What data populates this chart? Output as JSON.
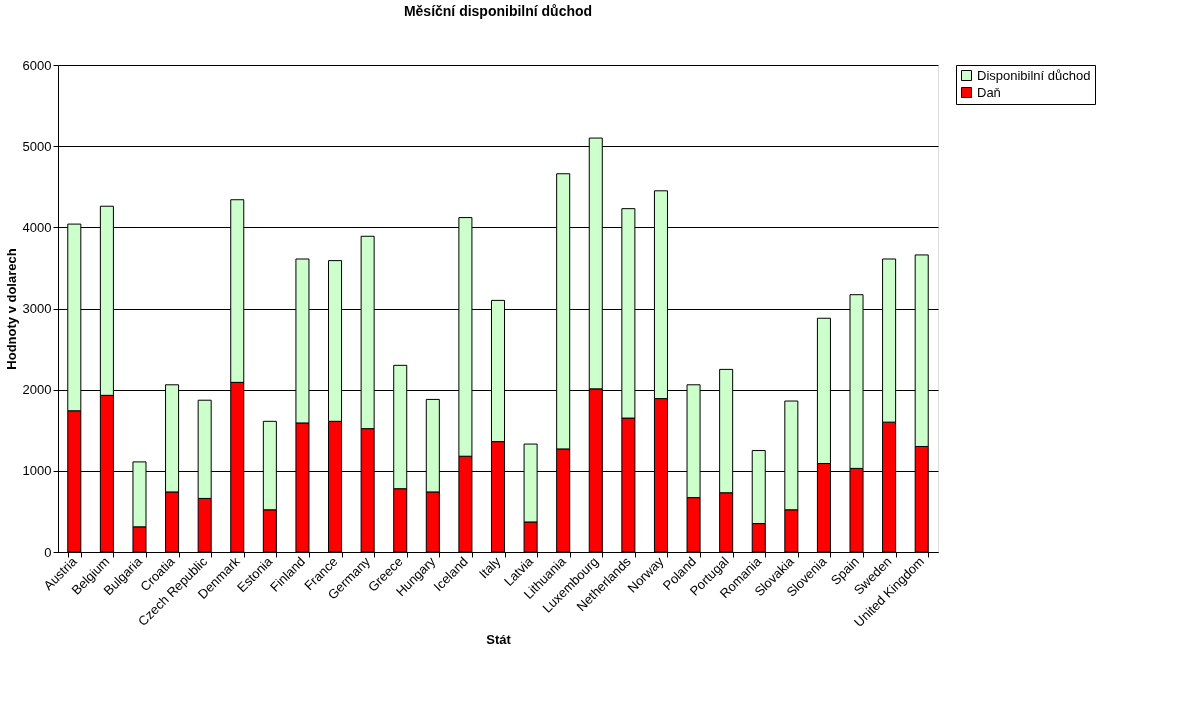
{
  "chart_data": {
    "type": "bar",
    "title": "Měsíční disponibilní důchod",
    "xlabel": "Stát",
    "ylabel": "Hodnoty v dolarech",
    "categories": [
      "Austria",
      "Belgium",
      "Bulgaria",
      "Croatia",
      "Czech Republic",
      "Denmark",
      "Estonia",
      "Finland",
      "France",
      "Germany",
      "Greece",
      "Hungary",
      "Iceland",
      "Italy",
      "Latvia",
      "Lithuania",
      "Luxembourg",
      "Netherlands",
      "Norway",
      "Poland",
      "Portugal",
      "Romania",
      "Slovakia",
      "Slovenia",
      "Spain",
      "Sweden",
      "United Kingdom"
    ],
    "series": [
      {
        "name": "Daň",
        "color": "#ff0000",
        "values": [
          1740,
          1930,
          310,
          740,
          660,
          2090,
          520,
          1590,
          1610,
          1520,
          780,
          740,
          1180,
          1360,
          370,
          1270,
          2010,
          1650,
          1890,
          670,
          730,
          350,
          520,
          1090,
          1030,
          1600,
          1300
        ]
      },
      {
        "name": "Disponibilní důchod",
        "color": "#ccffcc",
        "values": [
          2300,
          2330,
          800,
          1320,
          1210,
          2250,
          1090,
          2020,
          1980,
          2370,
          1520,
          1140,
          2940,
          1740,
          960,
          3390,
          3090,
          2580,
          2560,
          1390,
          1520,
          900,
          1340,
          1790,
          2140,
          2010,
          2360
        ]
      }
    ],
    "stacked": true,
    "ylim": [
      0,
      6000
    ],
    "yticks": [
      0,
      1000,
      2000,
      3000,
      4000,
      5000,
      6000
    ],
    "grid": "y",
    "legend": "right"
  }
}
